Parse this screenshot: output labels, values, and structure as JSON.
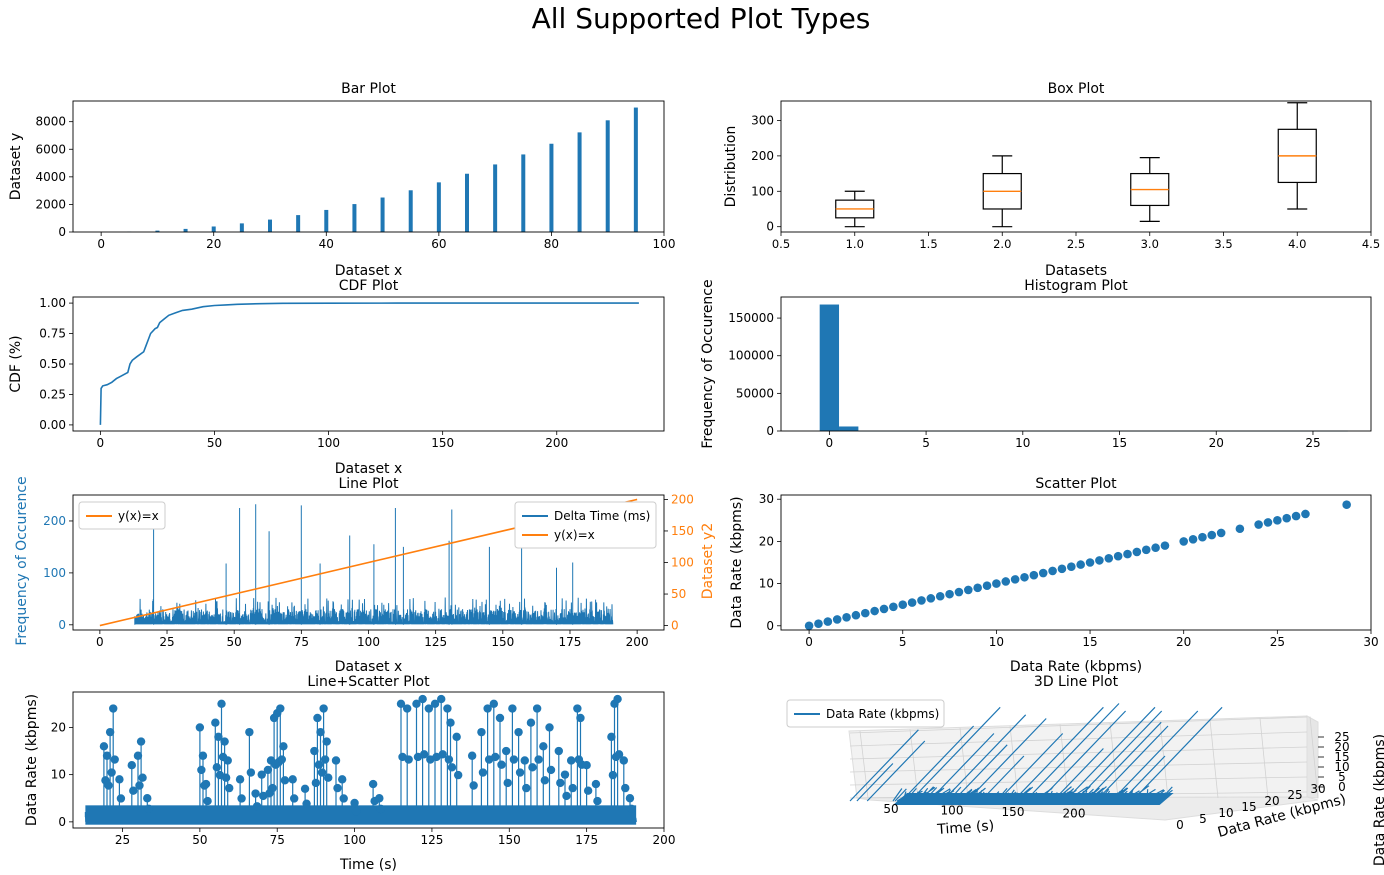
{
  "figure_title": "All Supported Plot Types",
  "colors": {
    "blue": "#1f77b4",
    "orange": "#ff7f0e"
  },
  "chart_data": [
    {
      "id": "bar",
      "type": "bar",
      "title": "Bar Plot",
      "xlabel": "Dataset x",
      "ylabel": "Dataset y",
      "xlim": [
        -5,
        100
      ],
      "ylim": [
        0,
        9500
      ],
      "xticks": [
        0,
        20,
        40,
        60,
        80,
        100
      ],
      "yticks": [
        0,
        2000,
        4000,
        6000,
        8000
      ],
      "x": [
        0,
        5,
        10,
        15,
        20,
        25,
        30,
        35,
        40,
        45,
        50,
        55,
        60,
        65,
        70,
        75,
        80,
        85,
        90,
        95
      ],
      "values": [
        0,
        25,
        100,
        225,
        400,
        625,
        900,
        1225,
        1600,
        2025,
        2500,
        3025,
        3600,
        4225,
        4900,
        5625,
        6400,
        7225,
        8100,
        9025
      ]
    },
    {
      "id": "box",
      "type": "box",
      "title": "Box Plot",
      "xlabel": "Datasets",
      "ylabel": "Distribution",
      "xlim": [
        0.5,
        4.5
      ],
      "ylim": [
        -15,
        355
      ],
      "xticks": [
        "0.5",
        "1.0",
        "1.5",
        "2.0",
        "2.5",
        "3.0",
        "3.5",
        "4.0",
        "4.5"
      ],
      "yticks": [
        0,
        100,
        200,
        300
      ],
      "boxes": [
        {
          "pos": 1,
          "min": 0,
          "q1": 25,
          "median": 50,
          "q3": 75,
          "max": 100
        },
        {
          "pos": 2,
          "min": 0,
          "q1": 50,
          "median": 100,
          "q3": 150,
          "max": 200
        },
        {
          "pos": 3,
          "min": 15,
          "q1": 60,
          "median": 105,
          "q3": 150,
          "max": 195
        },
        {
          "pos": 4,
          "min": 50,
          "q1": 125,
          "median": 200,
          "q3": 275,
          "max": 350
        }
      ]
    },
    {
      "id": "cdf",
      "type": "line",
      "title": "CDF Plot",
      "xlabel": "Dataset x",
      "ylabel": "CDF (%)",
      "xlim": [
        -12,
        247
      ],
      "ylim": [
        -0.05,
        1.05
      ],
      "xticks": [
        0,
        50,
        100,
        150,
        200
      ],
      "yticks": [
        "0.00",
        "0.25",
        "0.50",
        "0.75",
        "1.00"
      ],
      "x": [
        0,
        0.3,
        1,
        3,
        5,
        7,
        9,
        12,
        13,
        14,
        16,
        19,
        20,
        21,
        22,
        24,
        25,
        26,
        28,
        30,
        33,
        36,
        40,
        45,
        50,
        55,
        60,
        70,
        80,
        100,
        130,
        180,
        236
      ],
      "y": [
        0.0,
        0.3,
        0.32,
        0.33,
        0.35,
        0.38,
        0.4,
        0.43,
        0.5,
        0.53,
        0.56,
        0.6,
        0.65,
        0.7,
        0.75,
        0.79,
        0.8,
        0.84,
        0.87,
        0.9,
        0.92,
        0.94,
        0.95,
        0.97,
        0.98,
        0.985,
        0.99,
        0.995,
        0.998,
        0.999,
        1.0,
        1.0,
        1.0
      ]
    },
    {
      "id": "hist",
      "type": "bar",
      "title": "Histogram Plot",
      "xlabel": "",
      "ylabel": "Frequency of Occurence",
      "xlim": [
        -2.5,
        28
      ],
      "ylim": [
        0,
        178000
      ],
      "xticks": [
        0,
        5,
        10,
        15,
        20,
        25
      ],
      "yticks": [
        0,
        50000,
        100000,
        150000
      ],
      "bin_edges": [
        -0.5,
        0.5,
        1.5,
        26.8
      ],
      "values": [
        168000,
        6000,
        400
      ]
    },
    {
      "id": "dual",
      "type": "line",
      "title": "Line Plot",
      "xlabel": "Dataset x",
      "ylabel": "Frequency of Occurence",
      "y2label": "Dataset y2",
      "xlim": [
        -10,
        210
      ],
      "ylim": [
        -10,
        250
      ],
      "y2lim": [
        -7,
        207
      ],
      "xticks": [
        0,
        25,
        50,
        75,
        100,
        125,
        150,
        175,
        200
      ],
      "yticks": [
        0,
        100,
        200
      ],
      "y2ticks": [
        0,
        50,
        100,
        150,
        200
      ],
      "series": [
        {
          "name": "Delta Time (ms)",
          "axis": "left",
          "x_range": [
            13,
            191
          ],
          "typical_max": 50,
          "spikes": [
            [
              20,
              195
            ],
            [
              47,
              118
            ],
            [
              52,
              225
            ],
            [
              58,
              232
            ],
            [
              63,
              180
            ],
            [
              75,
              230
            ],
            [
              82,
              118
            ],
            [
              93,
              172
            ],
            [
              102,
              155
            ],
            [
              110,
              225
            ],
            [
              113,
              150
            ],
            [
              130,
              162
            ],
            [
              131,
              222
            ],
            [
              145,
              150
            ],
            [
              157,
              182
            ],
            [
              170,
              110
            ],
            [
              176,
              120
            ]
          ]
        },
        {
          "name": "y(x)=x",
          "axis": "right",
          "x": [
            0,
            200
          ],
          "y": [
            0,
            200
          ]
        }
      ],
      "legends": [
        [
          "y(x)=x"
        ],
        [
          "Delta Time (ms)",
          "y(x)=x"
        ]
      ]
    },
    {
      "id": "scatter",
      "type": "scatter",
      "title": "Scatter Plot",
      "xlabel": "Data Rate (kbpms)",
      "ylabel": "Data Rate (kbpms)",
      "xlim": [
        -1.5,
        30
      ],
      "ylim": [
        -1,
        31
      ],
      "xticks": [
        0,
        5,
        10,
        15,
        20,
        25,
        30
      ],
      "yticks": [
        0,
        10,
        20,
        30
      ],
      "x": [
        0,
        0.5,
        1,
        1.5,
        2,
        2.5,
        3,
        3.5,
        4,
        4.5,
        5,
        5.5,
        6,
        6.5,
        7,
        7.5,
        8,
        8.5,
        9,
        9.5,
        10,
        10.5,
        11,
        11.5,
        12,
        12.5,
        13,
        13.5,
        14,
        14.5,
        15,
        15.5,
        16,
        16.5,
        17,
        17.5,
        18,
        18.5,
        19,
        20,
        20.5,
        21,
        21.5,
        22,
        23,
        24,
        24.5,
        25,
        25.5,
        26,
        26.5,
        28.7
      ],
      "y": [
        0,
        0.5,
        1,
        1.5,
        2,
        2.5,
        3,
        3.5,
        4,
        4.5,
        5,
        5.5,
        6,
        6.5,
        7,
        7.5,
        8,
        8.5,
        9,
        9.5,
        10,
        10.5,
        11,
        11.5,
        12,
        12.5,
        13,
        13.5,
        14,
        14.5,
        15,
        15.5,
        16,
        16.5,
        17,
        17.5,
        18,
        18.5,
        19,
        20,
        20.5,
        21,
        21.5,
        22,
        23,
        24,
        24.5,
        25,
        25.5,
        26,
        26.5,
        28.7
      ]
    },
    {
      "id": "linescatter",
      "type": "line",
      "title": "Line+Scatter Plot",
      "xlabel": "Time (s)",
      "ylabel": "Data Rate (kbpms)",
      "xlim": [
        9,
        200
      ],
      "ylim": [
        -1.3,
        27.5
      ],
      "xticks": [
        25,
        50,
        75,
        100,
        125,
        150,
        175,
        200
      ],
      "yticks": [
        0,
        10,
        20
      ],
      "x_range": [
        13,
        191
      ],
      "spikes": [
        [
          19,
          16
        ],
        [
          20,
          14
        ],
        [
          21,
          19
        ],
        [
          22,
          24
        ],
        [
          24,
          9
        ],
        [
          28,
          12
        ],
        [
          30,
          14
        ],
        [
          31,
          17
        ],
        [
          33,
          5
        ],
        [
          50,
          20
        ],
        [
          51,
          14
        ],
        [
          52,
          8
        ],
        [
          55,
          21
        ],
        [
          56,
          18
        ],
        [
          57,
          25
        ],
        [
          58,
          17
        ],
        [
          59,
          13
        ],
        [
          63,
          9
        ],
        [
          66,
          19
        ],
        [
          68,
          6
        ],
        [
          70,
          10
        ],
        [
          72,
          11
        ],
        [
          73,
          13
        ],
        [
          74,
          22
        ],
        [
          75,
          23
        ],
        [
          76,
          24
        ],
        [
          77,
          16
        ],
        [
          80,
          9
        ],
        [
          84,
          7
        ],
        [
          87,
          15
        ],
        [
          88,
          22
        ],
        [
          89,
          19
        ],
        [
          90,
          24
        ],
        [
          91,
          17
        ],
        [
          94,
          13
        ],
        [
          96,
          9
        ],
        [
          100,
          4
        ],
        [
          106,
          8
        ],
        [
          108,
          5
        ],
        [
          115,
          25
        ],
        [
          117,
          24
        ],
        [
          120,
          25
        ],
        [
          122,
          26
        ],
        [
          124,
          24
        ],
        [
          126,
          25
        ],
        [
          128,
          26
        ],
        [
          130,
          24
        ],
        [
          131,
          21
        ],
        [
          133,
          18
        ],
        [
          138,
          14
        ],
        [
          141,
          19
        ],
        [
          143,
          24
        ],
        [
          145,
          25
        ],
        [
          147,
          22
        ],
        [
          149,
          15
        ],
        [
          151,
          24
        ],
        [
          153,
          19
        ],
        [
          155,
          13
        ],
        [
          157,
          21
        ],
        [
          159,
          24
        ],
        [
          161,
          16
        ],
        [
          163,
          20
        ],
        [
          166,
          15
        ],
        [
          168,
          10
        ],
        [
          170,
          13
        ],
        [
          172,
          24
        ],
        [
          173,
          22
        ],
        [
          175,
          12
        ],
        [
          178,
          8
        ],
        [
          183,
          18
        ],
        [
          184,
          25
        ],
        [
          185,
          26
        ],
        [
          187,
          13
        ],
        [
          189,
          5
        ]
      ]
    },
    {
      "id": "line3d",
      "type": "line",
      "title": "3D Line Plot",
      "xlabel": "Time (s)",
      "ylabel": "Data Rate (kbpms)",
      "zlabel": "Data Rate (kbpms)",
      "xticks": [
        50,
        100,
        150,
        200
      ],
      "yticks": [
        0,
        5,
        10,
        15,
        20,
        25,
        30
      ],
      "zticks": [
        0,
        5,
        10,
        15,
        20,
        25
      ],
      "series": [
        {
          "name": "Data Rate (kbpms)"
        }
      ],
      "spikes": [
        [
          20,
          19,
          19
        ],
        [
          24,
          10,
          10
        ],
        [
          30,
          16,
          16
        ],
        [
          50,
          20,
          20
        ],
        [
          55,
          25,
          25
        ],
        [
          66,
          18,
          18
        ],
        [
          74,
          23,
          23
        ],
        [
          80,
          15,
          15
        ],
        [
          88,
          22,
          22
        ],
        [
          96,
          12,
          12
        ],
        [
          106,
          18,
          18
        ],
        [
          115,
          25,
          25
        ],
        [
          122,
          26,
          26
        ],
        [
          130,
          24,
          24
        ],
        [
          138,
          14,
          14
        ],
        [
          145,
          25,
          25
        ],
        [
          151,
          24,
          24
        ],
        [
          157,
          21,
          21
        ],
        [
          163,
          20,
          20
        ],
        [
          172,
          24,
          24
        ],
        [
          178,
          12,
          12
        ],
        [
          184,
          25,
          25
        ]
      ]
    }
  ]
}
